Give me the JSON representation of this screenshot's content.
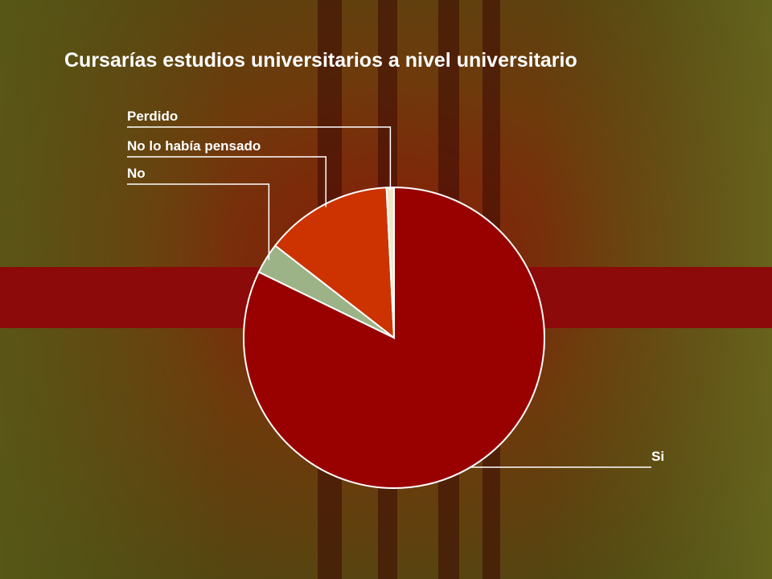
{
  "chart_data": {
    "type": "pie",
    "title": "Cursarías estudios universitarios a nivel universitario",
    "categories": [
      "Si",
      "No",
      "No lo había pensado",
      "Perdido"
    ],
    "values": [
      82.2,
      3.3,
      13.7,
      0.8
    ],
    "colors": [
      "#990000",
      "#9cb387",
      "#cc3300",
      "#f2e6c9"
    ]
  }
}
